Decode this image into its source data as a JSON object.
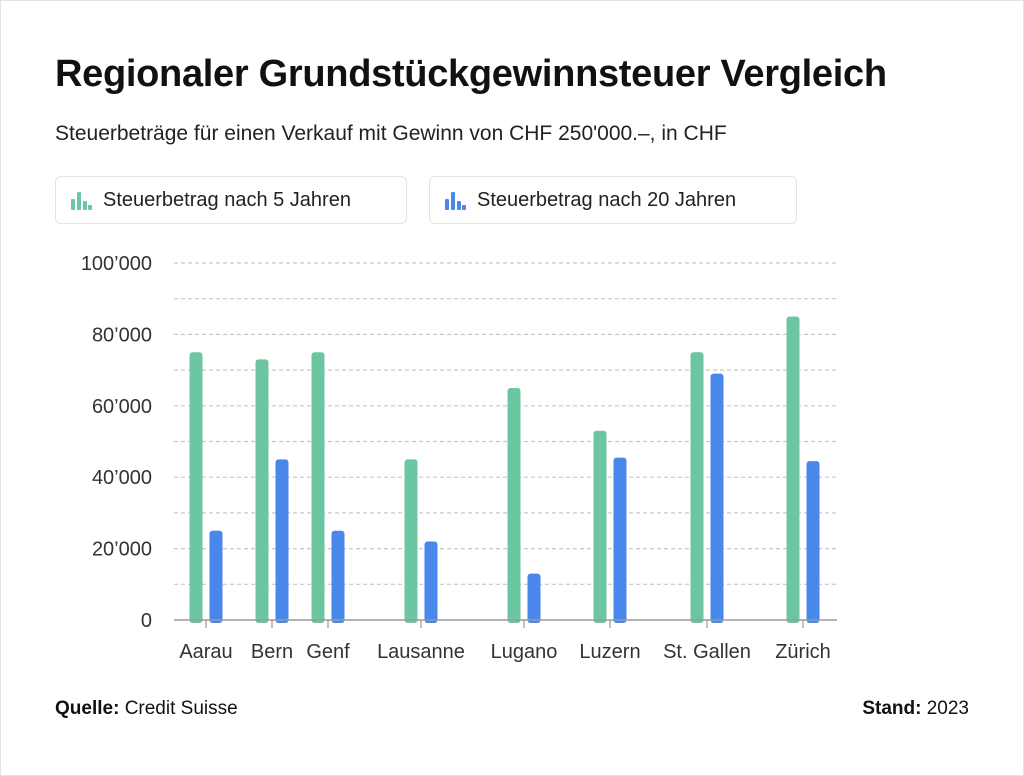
{
  "colors": {
    "series_5": "#6cc6a1",
    "series_20": "#4a87ea",
    "grid": "#c8c8c8",
    "axis": "#9a9a9a"
  },
  "header": {
    "title": "Regionaler Grundstückgewinnsteuer Vergleich",
    "subtitle": "Steuerbeträge für einen Verkauf mit Gewinn von CHF 250'000.–, in CHF"
  },
  "legend": [
    {
      "label": "Steuerbetrag nach 5 Jahren",
      "icon": "bar-chart-icon"
    },
    {
      "label": "Steuerbetrag nach 20 Jahren",
      "icon": "bar-chart-icon"
    }
  ],
  "footer": {
    "source_label": "Quelle:",
    "source_value": "Credit Suisse",
    "date_label": "Stand:",
    "date_value": "2023"
  },
  "chart_data": {
    "type": "bar",
    "title": "Regionaler Grundstückgewinnsteuer Vergleich",
    "subtitle": "Steuerbeträge für einen Verkauf mit Gewinn von CHF 250'000.–, in CHF",
    "xlabel": "",
    "ylabel": "",
    "categories": [
      "Aarau",
      "Bern",
      "Genf",
      "Lausanne",
      "Lugano",
      "Luzern",
      "St. Gallen",
      "Zürich"
    ],
    "series": [
      {
        "name": "Steuerbetrag nach 5 Jahren",
        "values": [
          75000,
          73000,
          75000,
          45000,
          65000,
          53000,
          75000,
          85000
        ]
      },
      {
        "name": "Steuerbetrag nach 20 Jahren",
        "values": [
          25000,
          45000,
          25000,
          22000,
          13000,
          45500,
          69000,
          44500
        ]
      }
    ],
    "ylim": [
      0,
      100000
    ],
    "yticks": [
      0,
      20000,
      40000,
      60000,
      80000,
      100000
    ],
    "ytick_labels": [
      "0",
      "20’000",
      "40’000",
      "60’000",
      "80’000",
      "100’000"
    ],
    "grid": true,
    "legend_position": "top-left"
  }
}
